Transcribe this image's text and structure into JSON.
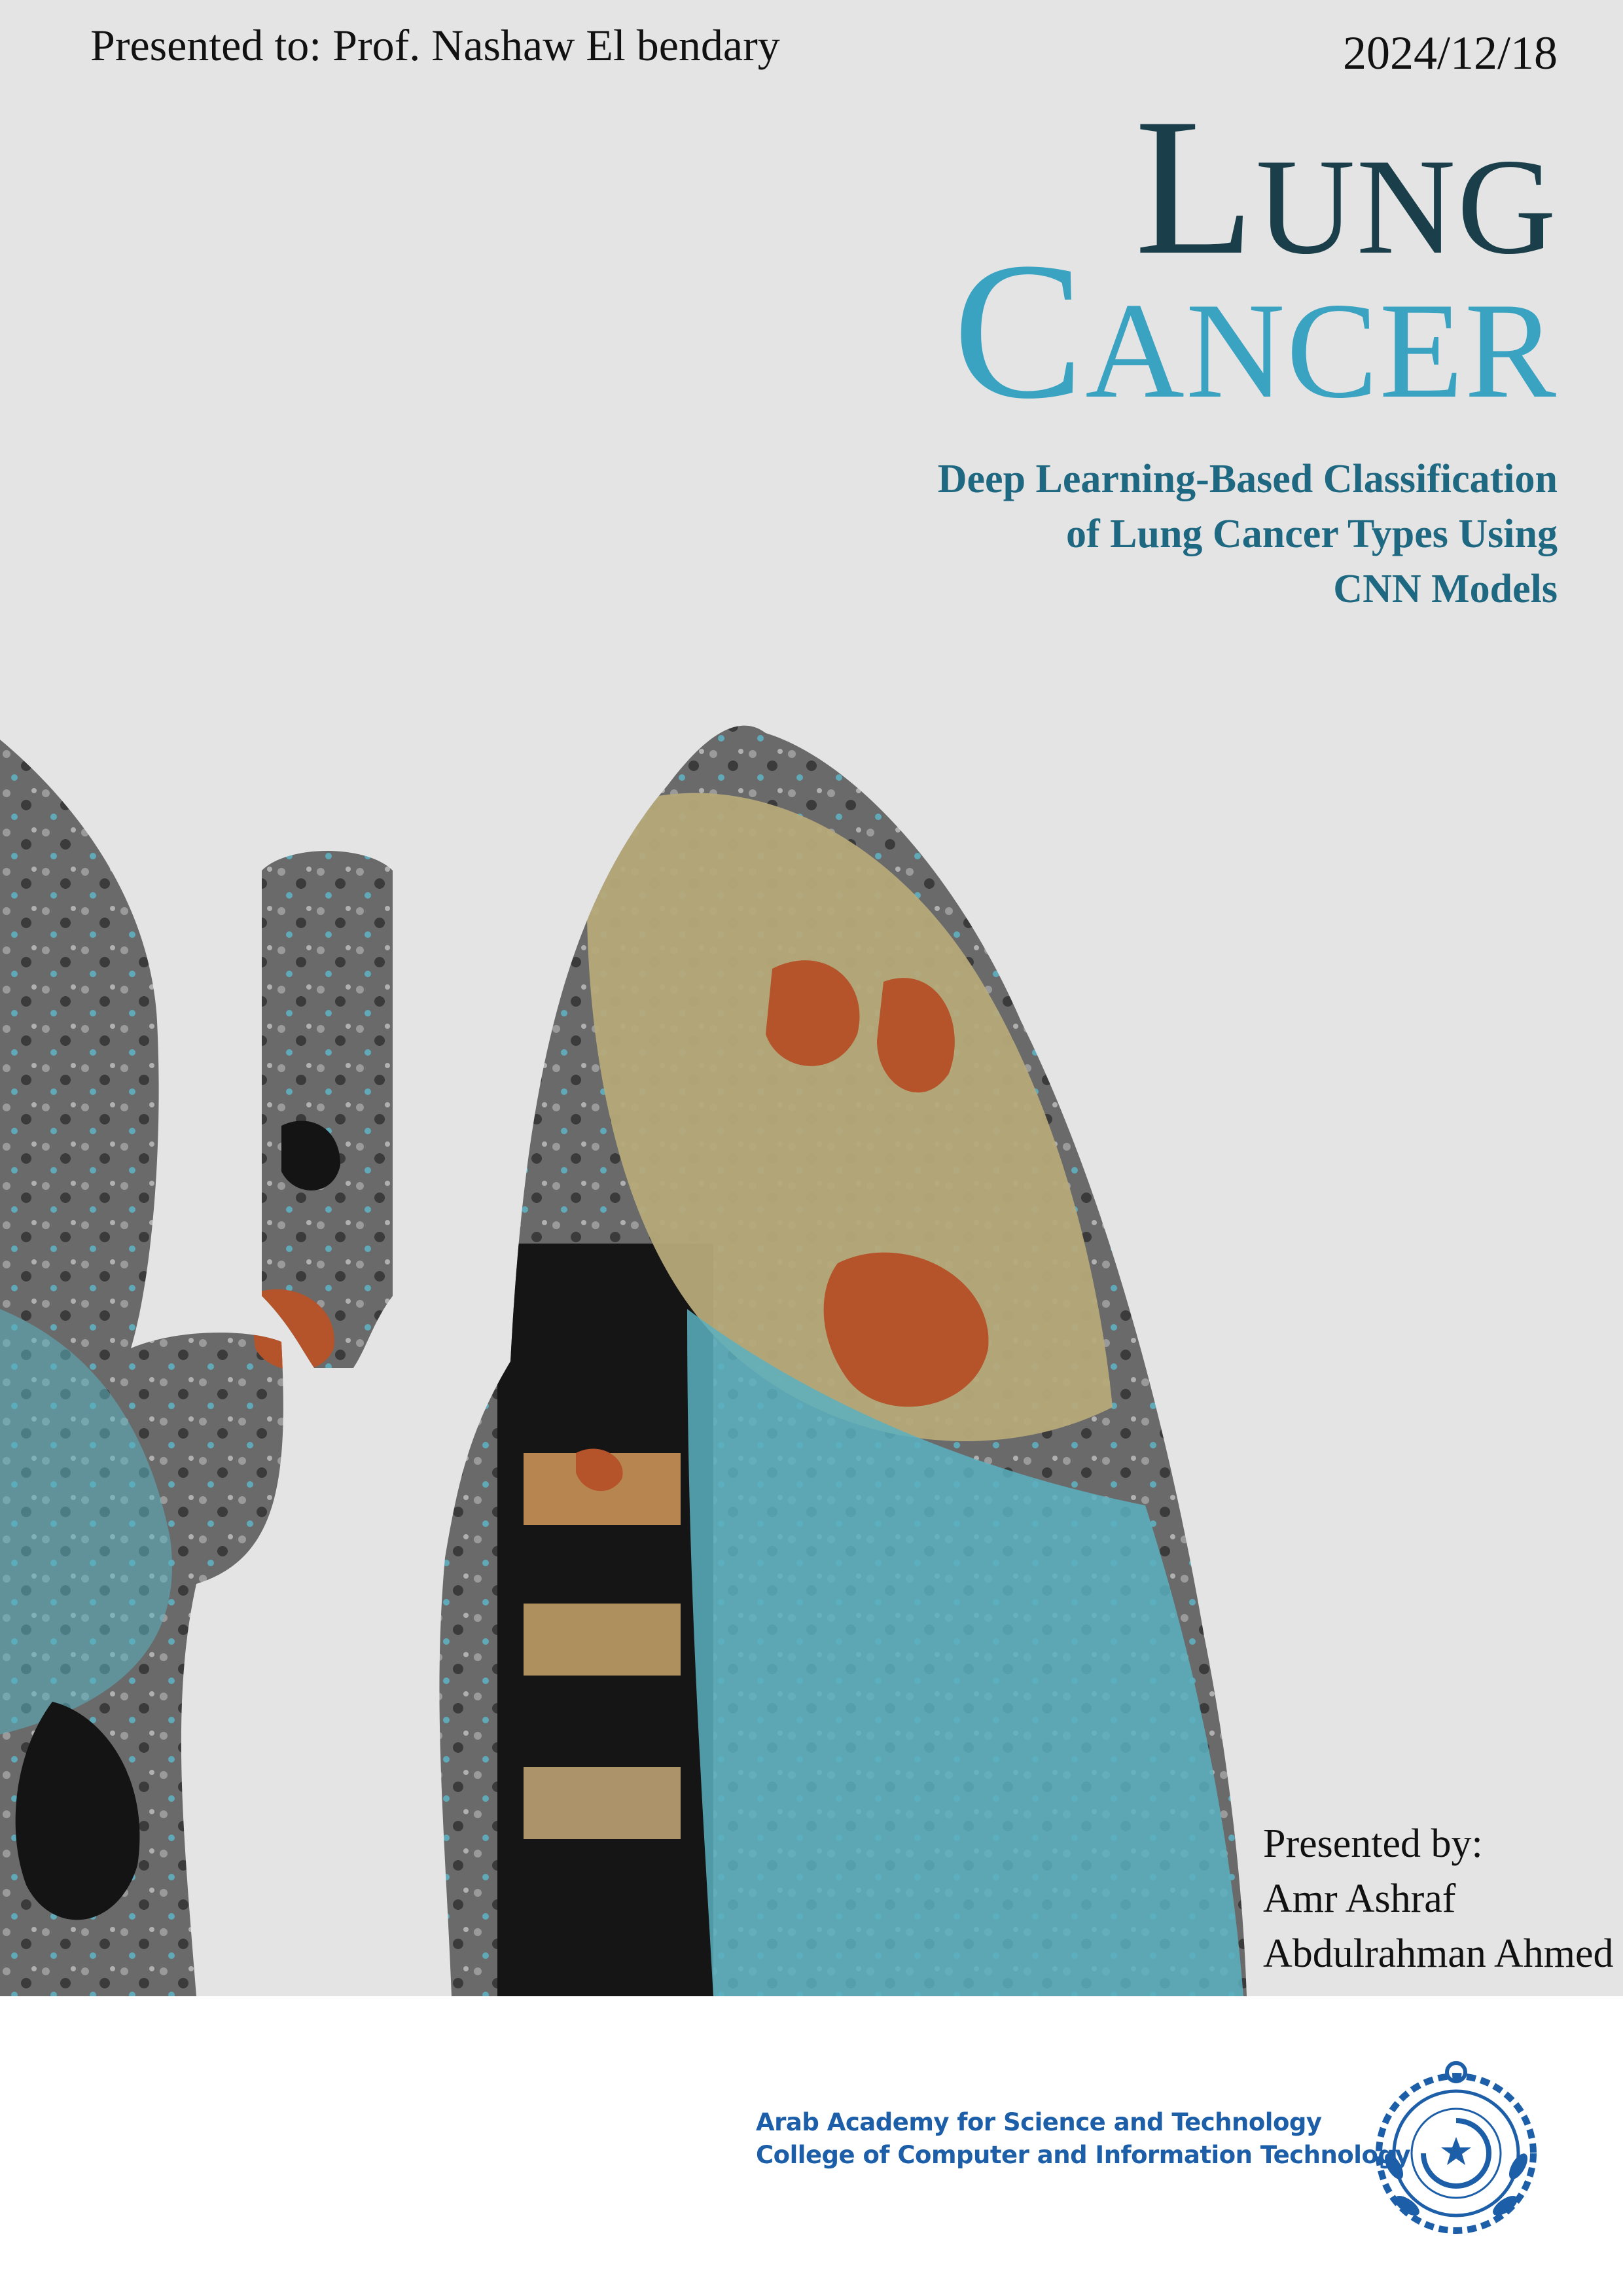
{
  "header": {
    "presented_to": "Presented to: Prof. Nashaw El bendary",
    "date": "2024/12/18"
  },
  "title": {
    "line1_initial": "L",
    "line1_rest": "UNG",
    "line2_initial": "C",
    "line2_rest": "ANCER"
  },
  "subtitle": {
    "line1": "Deep Learning-Based Classification",
    "line2": "of Lung Cancer Types Using",
    "line3": "CNN Models"
  },
  "presenters": {
    "heading": "Presented by:",
    "names": [
      "Amr Ashraf",
      "Abdulrahman Ahmed"
    ]
  },
  "footer": {
    "institution": "Arab Academy for Science and Technology",
    "college": "College of Computer and Information Technology",
    "logo_icon": "aast-seal-icon"
  },
  "colors": {
    "background": "#e4e4e4",
    "title_dark": "#1b3f4a",
    "title_light": "#3aa3c2",
    "subtitle": "#1e6882",
    "footer_text": "#1d5ea8"
  }
}
